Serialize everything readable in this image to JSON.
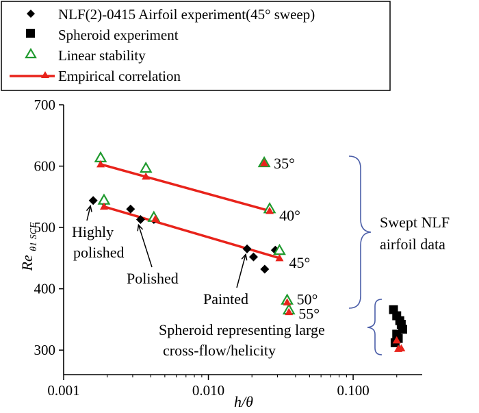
{
  "chart_data": {
    "type": "scatter",
    "x_scale": "log",
    "xlim": [
      0.001,
      0.3
    ],
    "ylim": [
      260,
      700
    ],
    "xlabel": "h/θ",
    "ylabel_main": "Re",
    "ylabel_sub": "θ1 SCF",
    "x_ticks": [
      {
        "value": 0.001,
        "label": "0.001"
      },
      {
        "value": 0.01,
        "label": "0.010"
      },
      {
        "value": 0.1,
        "label": "0.100"
      }
    ],
    "y_ticks": [
      {
        "value": 300,
        "label": "300"
      },
      {
        "value": 400,
        "label": "400"
      },
      {
        "value": 500,
        "label": "500"
      },
      {
        "value": 600,
        "label": "600"
      },
      {
        "value": 700,
        "label": "700"
      }
    ],
    "legend": [
      {
        "label": "NLF(2)-0415 Airfoil experiment(45° sweep)",
        "marker": "diamond"
      },
      {
        "label": "Spheroid experiment",
        "marker": "square"
      },
      {
        "label": "Linear stability",
        "marker": "open-triangle"
      },
      {
        "label": "Empirical correlation",
        "marker": "line-triangle"
      }
    ],
    "series": [
      {
        "name": "NLF(2)-0415 Airfoil experiment(45° sweep)",
        "marker": "diamond",
        "points": [
          {
            "x": 0.0016,
            "y": 544
          },
          {
            "x": 0.0019,
            "y": 541
          },
          {
            "x": 0.0029,
            "y": 530
          },
          {
            "x": 0.0034,
            "y": 513
          },
          {
            "x": 0.0042,
            "y": 513
          },
          {
            "x": 0.0185,
            "y": 465
          },
          {
            "x": 0.0205,
            "y": 452
          },
          {
            "x": 0.0245,
            "y": 432
          },
          {
            "x": 0.029,
            "y": 463
          }
        ]
      },
      {
        "name": "Spheroid experiment",
        "marker": "square",
        "points": [
          {
            "x": 0.19,
            "y": 366
          },
          {
            "x": 0.2,
            "y": 356
          },
          {
            "x": 0.21,
            "y": 348
          },
          {
            "x": 0.215,
            "y": 342
          },
          {
            "x": 0.22,
            "y": 334
          },
          {
            "x": 0.2,
            "y": 326
          },
          {
            "x": 0.205,
            "y": 319
          },
          {
            "x": 0.195,
            "y": 312
          }
        ]
      },
      {
        "name": "Linear stability",
        "marker": "open-triangle",
        "points": [
          {
            "x": 0.0018,
            "y": 613
          },
          {
            "x": 0.0037,
            "y": 596
          },
          {
            "x": 0.0243,
            "y": 605
          },
          {
            "x": 0.0265,
            "y": 530
          },
          {
            "x": 0.0019,
            "y": 544
          },
          {
            "x": 0.0042,
            "y": 516
          },
          {
            "x": 0.031,
            "y": 462
          },
          {
            "x": 0.035,
            "y": 381
          },
          {
            "x": 0.036,
            "y": 365
          }
        ]
      },
      {
        "name": "Empirical correlation",
        "marker": "filled-triangle",
        "points": [
          {
            "x": 0.0018,
            "y": 603
          },
          {
            "x": 0.0037,
            "y": 583
          },
          {
            "x": 0.0243,
            "y": 605
          },
          {
            "x": 0.0265,
            "y": 527
          },
          {
            "x": 0.0019,
            "y": 534
          },
          {
            "x": 0.0043,
            "y": 514
          },
          {
            "x": 0.031,
            "y": 450
          },
          {
            "x": 0.035,
            "y": 378
          },
          {
            "x": 0.036,
            "y": 362
          },
          {
            "x": 0.2,
            "y": 316
          },
          {
            "x": 0.205,
            "y": 302
          },
          {
            "x": 0.215,
            "y": 303
          }
        ]
      }
    ],
    "lines": [
      {
        "name": "correlation-35-40",
        "x": [
          0.0018,
          0.0265
        ],
        "y": [
          603,
          527
        ]
      },
      {
        "name": "correlation-45",
        "x": [
          0.0019,
          0.031
        ],
        "y": [
          534,
          450
        ]
      }
    ],
    "annotations": {
      "sweep_labels": [
        {
          "text": "35°",
          "x": 0.0243,
          "y": 605
        },
        {
          "text": "40°",
          "x": 0.0265,
          "y": 527
        },
        {
          "text": "45°",
          "x": 0.031,
          "y": 450
        },
        {
          "text": "50°",
          "x": 0.035,
          "y": 381
        },
        {
          "text": "55°",
          "x": 0.036,
          "y": 362
        }
      ],
      "surface_labels": [
        {
          "lines": [
            "Highly",
            "polished"
          ],
          "target": {
            "x": 0.0016,
            "y": 544
          }
        },
        {
          "lines": [
            "Polished"
          ],
          "target": {
            "x": 0.0034,
            "y": 513
          }
        },
        {
          "lines": [
            "Painted"
          ],
          "target": {
            "x": 0.0185,
            "y": 465
          }
        }
      ],
      "brace_swept": {
        "lines": [
          "Swept NLF",
          "airfoil data"
        ]
      },
      "brace_spheroid": {
        "lines": [
          "Spheroid representing large",
          "cross-flow/helicity"
        ]
      }
    },
    "colors": {
      "red": "#e8231b",
      "green": "#1f9a2e",
      "blue": "#4b5ea8",
      "black": "#000000"
    }
  }
}
